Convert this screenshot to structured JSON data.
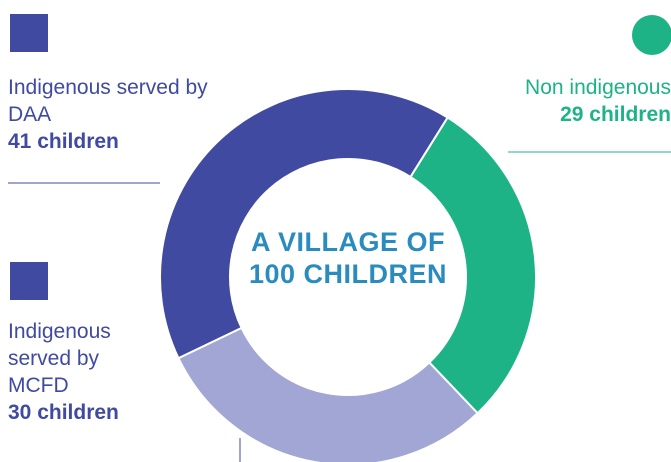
{
  "chart_data": {
    "type": "pie",
    "donut": true,
    "center_text": "A VILLAGE OF 100 CHILDREN",
    "categories": [
      "Non indigenous",
      "Indigenous served by MCFD",
      "Indigenous served by DAA"
    ],
    "values": [
      29,
      30,
      41
    ],
    "value_labels": [
      "29 children",
      "30 children",
      "41 children"
    ],
    "colors": [
      "#1db386",
      "#a1a6d4",
      "#3f4aa0"
    ]
  }
}
